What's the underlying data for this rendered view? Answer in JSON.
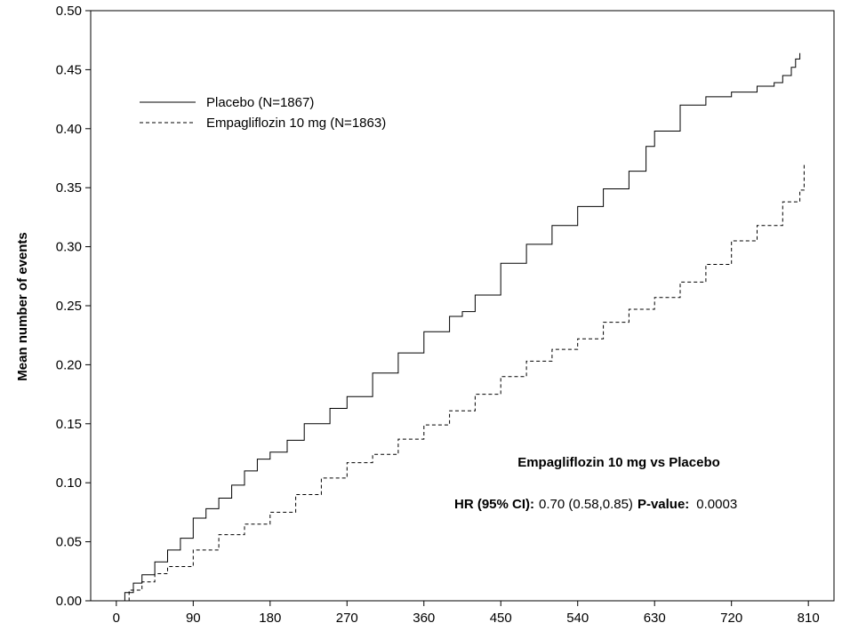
{
  "chart_data": {
    "type": "line",
    "title": "",
    "xlabel": "",
    "ylabel": "Mean number of events",
    "xlim": [
      -30,
      840
    ],
    "ylim": [
      0,
      0.5
    ],
    "x_ticks": [
      "0",
      "90",
      "180",
      "270",
      "360",
      "450",
      "540",
      "630",
      "720",
      "810"
    ],
    "y_ticks": [
      "0.00",
      "0.05",
      "0.10",
      "0.15",
      "0.20",
      "0.25",
      "0.30",
      "0.35",
      "0.40",
      "0.45",
      "0.50"
    ],
    "grid": false,
    "legend_position": "top-left",
    "series": [
      {
        "name": "Placebo (N=1867)",
        "style": "solid",
        "color": "#000000",
        "x": [
          0,
          10,
          20,
          30,
          45,
          60,
          75,
          90,
          105,
          120,
          135,
          150,
          165,
          180,
          200,
          220,
          250,
          270,
          300,
          330,
          360,
          390,
          405,
          420,
          450,
          480,
          510,
          540,
          570,
          600,
          620,
          630,
          660,
          690,
          720,
          750,
          770,
          780,
          790,
          795,
          800
        ],
        "y": [
          0.0,
          0.007,
          0.015,
          0.022,
          0.033,
          0.043,
          0.053,
          0.07,
          0.078,
          0.087,
          0.098,
          0.11,
          0.12,
          0.126,
          0.136,
          0.15,
          0.163,
          0.173,
          0.193,
          0.21,
          0.228,
          0.241,
          0.245,
          0.259,
          0.286,
          0.302,
          0.318,
          0.334,
          0.349,
          0.364,
          0.385,
          0.398,
          0.42,
          0.427,
          0.431,
          0.436,
          0.439,
          0.445,
          0.452,
          0.459,
          0.464
        ]
      },
      {
        "name": "Empagliflozin 10 mg (N=1863)",
        "style": "dashed",
        "color": "#000000",
        "x": [
          0,
          15,
          30,
          45,
          60,
          90,
          120,
          150,
          180,
          210,
          240,
          270,
          300,
          330,
          360,
          390,
          420,
          450,
          480,
          510,
          540,
          570,
          600,
          630,
          660,
          690,
          720,
          750,
          780,
          800,
          805
        ],
        "y": [
          0.0,
          0.009,
          0.016,
          0.023,
          0.029,
          0.043,
          0.056,
          0.065,
          0.075,
          0.09,
          0.104,
          0.117,
          0.124,
          0.137,
          0.149,
          0.161,
          0.175,
          0.19,
          0.203,
          0.213,
          0.222,
          0.236,
          0.247,
          0.257,
          0.27,
          0.285,
          0.305,
          0.318,
          0.338,
          0.348,
          0.37
        ]
      }
    ],
    "annotations": {
      "comparison": "Empagliflozin 10 mg vs Placebo",
      "hr_label": "HR (95% CI):",
      "hr_value": "0.70 (0.58,0.85)",
      "p_label": "P-value:",
      "p_value": "0.0003"
    }
  }
}
